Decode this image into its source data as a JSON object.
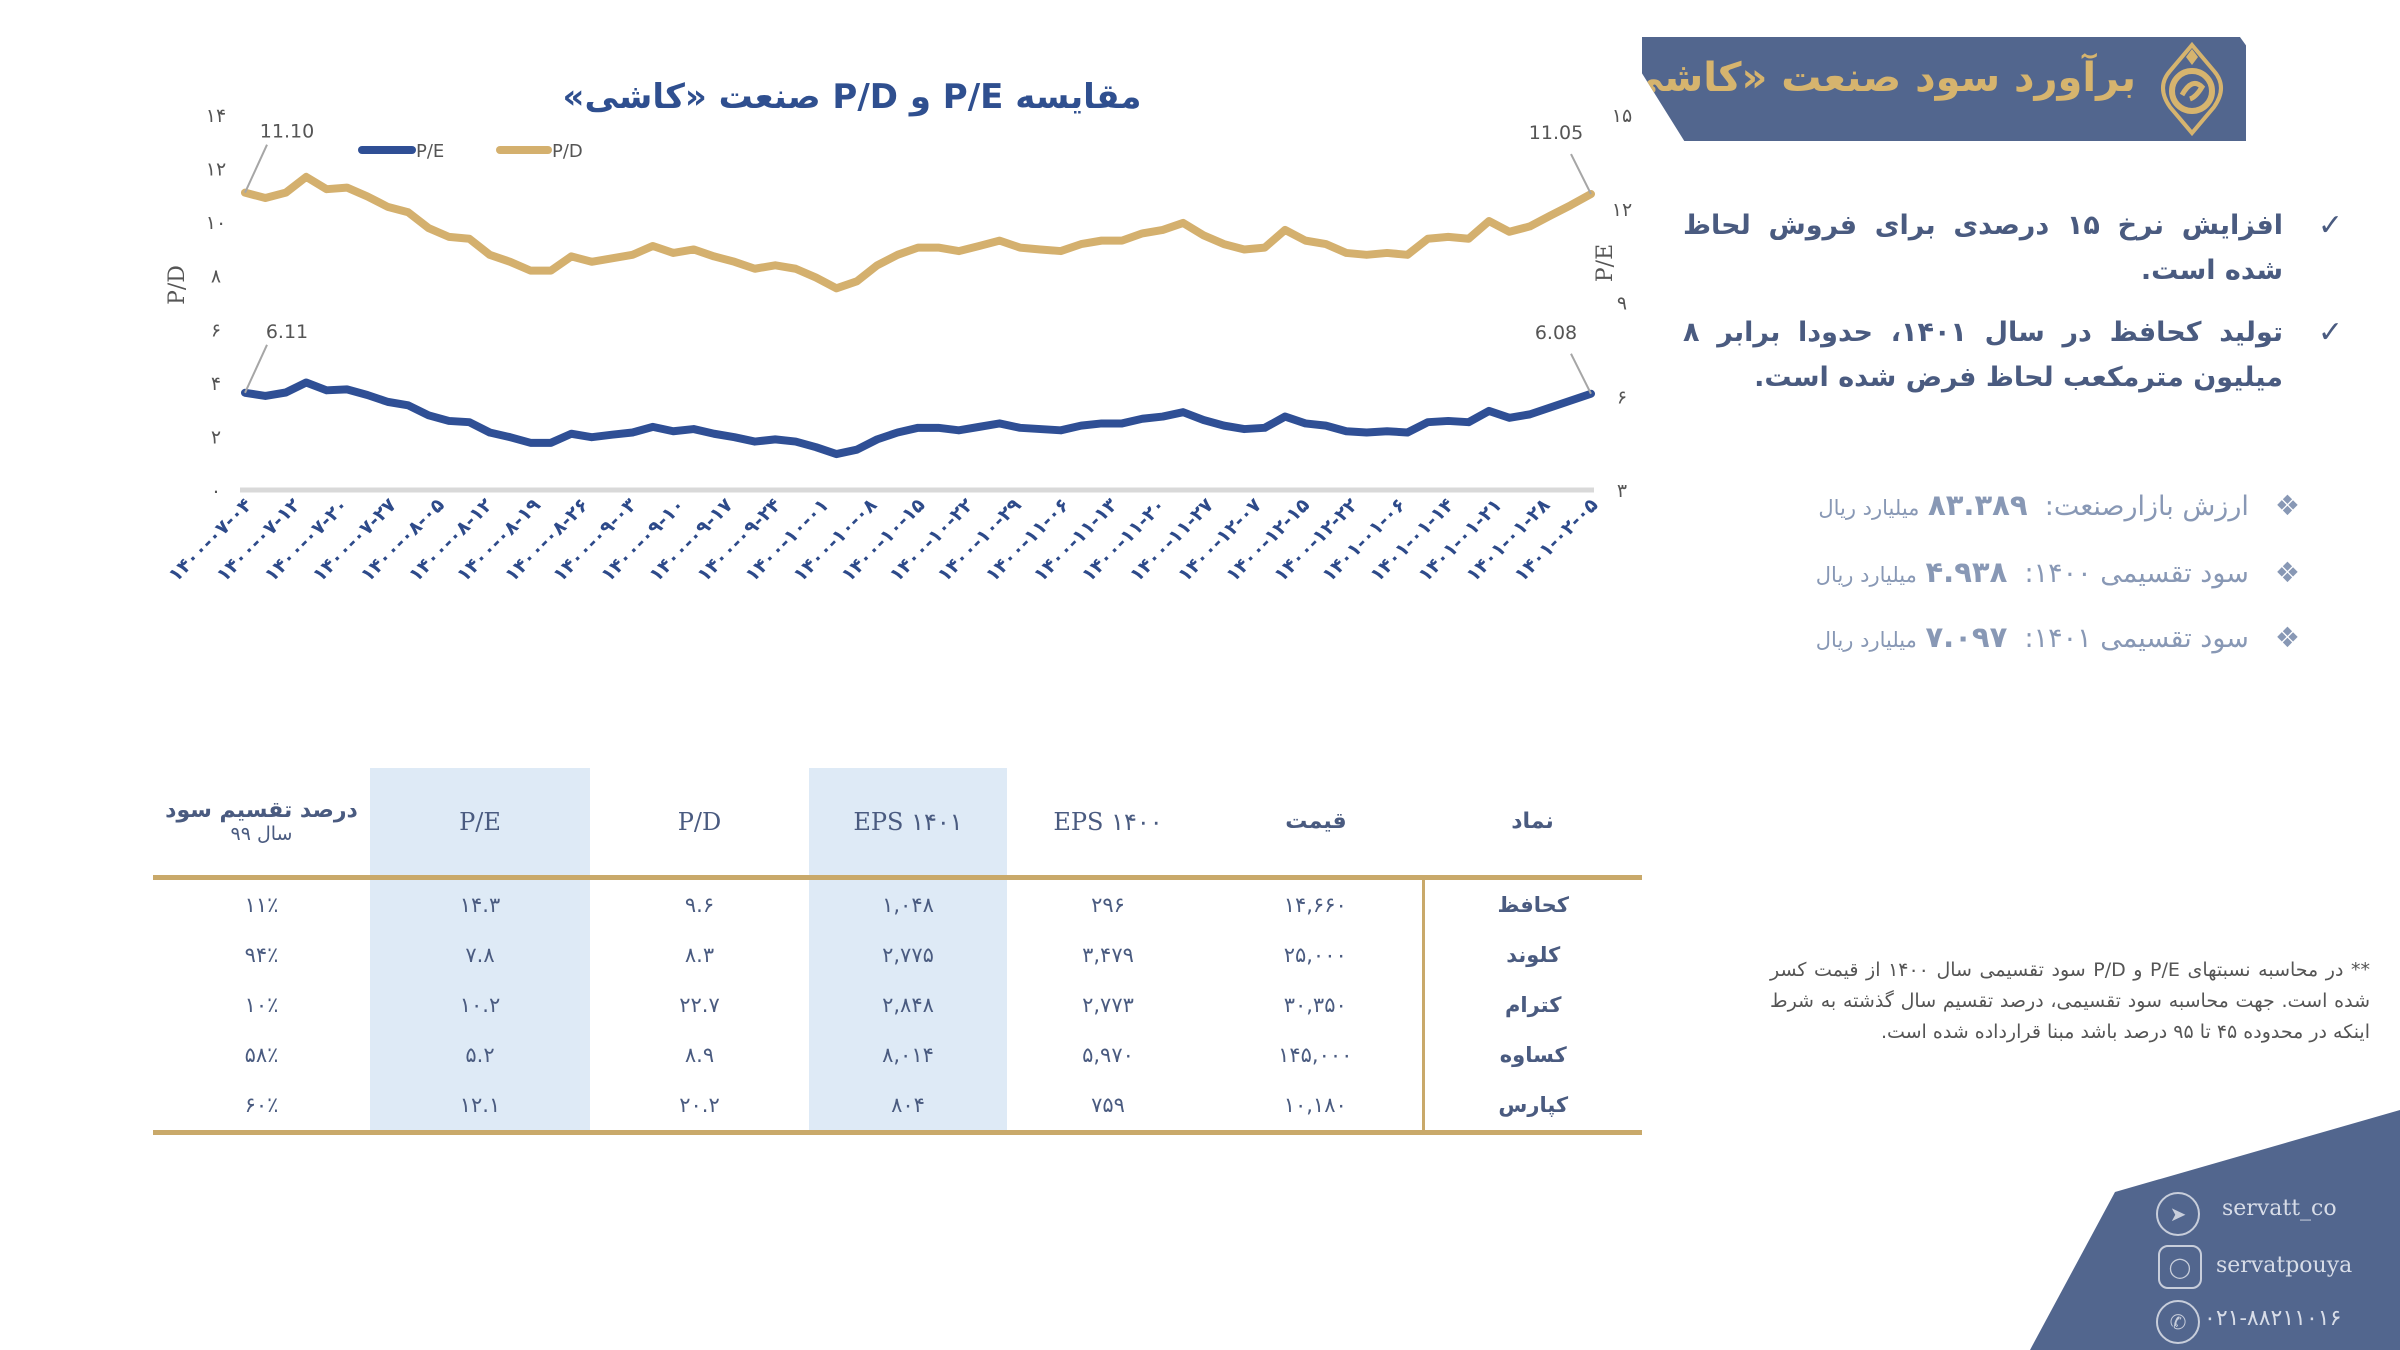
{
  "header": {
    "title": "برآورد سود صنعت «کاشی»",
    "logo_icon": "servat-logo"
  },
  "bullets": [
    "افزایش نرخ ۱۵ درصدی برای فروش لحاظ شده است.",
    "تولید کحافظ در سال ۱۴۰۱، حدودا برابر ۸ میلیون مترمکعب لحاظ فرض شده است."
  ],
  "facts": [
    {
      "label": "ارزش بازارصنعت:",
      "value": "۸۳.۳۸۹",
      "unit": "میلیارد ریال"
    },
    {
      "label": "سود تقسیمی ۱۴۰۰:",
      "value": "۴.۹۳۸",
      "unit": "میلیارد ریال"
    },
    {
      "label": "سود تقسیمی ۱۴۰۱:",
      "value": "۷.۰۹۷",
      "unit": "میلیارد ریال"
    }
  ],
  "note": "** در محاسبه نسبتهای P/E و P/D  سود تقسیمی سال ۱۴۰۰ از قیمت کسر شده است. جهت محاسبه سود تقسیمی، درصد تقسیم سال گذشته به شرط اینکه در محدوده ۴۵ تا ۹۵ درصد باشد مبنا قرارداده شده است.",
  "contacts": {
    "telegram": "servatt_co",
    "instagram": "servatpouya",
    "phone": "۰۲۱-۸۸۲۱۱۰۱۶"
  },
  "table": {
    "headers": [
      "نماد",
      "قیمت",
      "EPS ۱۴۰۰",
      "EPS ۱۴۰۱",
      "P/D",
      "P/E",
      "درصد تقسیم سود",
      "سال ۹۹"
    ],
    "rows": [
      [
        "کحافظ",
        "۱۴,۶۶۰",
        "۲۹۶",
        "۱,۰۴۸",
        "۹.۶",
        "۱۴.۳",
        "۱۱٪"
      ],
      [
        "کلوند",
        "۲۵,۰۰۰",
        "۳,۴۷۹",
        "۲,۷۷۵",
        "۸.۳",
        "۷.۸",
        "۹۴٪"
      ],
      [
        "کترام",
        "۳۰,۳۵۰",
        "۲,۷۷۳",
        "۲,۸۴۸",
        "۲۲.۷",
        "۱۰.۲",
        "۱۰٪"
      ],
      [
        "کساوه",
        "۱۴۵,۰۰۰",
        "۵,۹۷۰",
        "۸,۰۱۴",
        "۸.۹",
        "۵.۲",
        "۵۸٪"
      ],
      [
        "کپارس",
        "۱۰,۱۸۰",
        "۷۵۹",
        "۸۰۴",
        "۲۰.۲",
        "۱۲.۱",
        "۶۰٪"
      ]
    ]
  },
  "colors": {
    "navy": "#52668e",
    "gold": "#d4b06e",
    "pe_line": "#2f4f95",
    "pd_line": "#d4b06e",
    "shade": "#deeaf6"
  },
  "chart_data": {
    "type": "line",
    "title": "مقایسه P/E و P/D صنعت «کاشی»",
    "ylabel_left": "P/D",
    "ylabel_right": "P/E",
    "ylim_left": [
      0,
      14
    ],
    "yticks_left": [
      "۰",
      "۲",
      "۴",
      "۶",
      "۸",
      "۱۰",
      "۱۲",
      "۱۴"
    ],
    "ylim_right": [
      3,
      15
    ],
    "yticks_right": [
      "۳",
      "۶",
      "۹",
      "۱۲",
      "۱۵"
    ],
    "legend": [
      "P/E",
      "P/D"
    ],
    "legend_position": "top-left",
    "xticks": [
      "۱۴۰۰-۰۷-۰۴",
      "۱۴۰۰-۰۷-۱۲",
      "۱۴۰۰-۰۷-۲۰",
      "۱۴۰۰-۰۷-۲۷",
      "۱۴۰۰-۰۸-۰۵",
      "۱۴۰۰-۰۸-۱۲",
      "۱۴۰۰-۰۸-۱۹",
      "۱۴۰۰-۰۸-۲۶",
      "۱۴۰۰-۰۹-۰۳",
      "۱۴۰۰-۰۹-۱۰",
      "۱۴۰۰-۰۹-۱۷",
      "۱۴۰۰-۰۹-۲۴",
      "۱۴۰۰-۱۰-۰۱",
      "۱۴۰۰-۱۰-۰۸",
      "۱۴۰۰-۱۰-۱۵",
      "۱۴۰۰-۱۰-۲۲",
      "۱۴۰۰-۱۰-۲۹",
      "۱۴۰۰-۱۱-۰۶",
      "۱۴۰۰-۱۱-۱۳",
      "۱۴۰۰-۱۱-۲۰",
      "۱۴۰۰-۱۱-۲۷",
      "۱۴۰۰-۱۲-۰۷",
      "۱۴۰۰-۱۲-۱۵",
      "۱۴۰۰-۱۲-۲۲",
      "۱۴۰۱-۰۱-۰۶",
      "۱۴۰۱-۰۱-۱۴",
      "۱۴۰۱-۰۱-۲۱",
      "۱۴۰۱-۰۱-۲۸",
      "۱۴۰۱-۰۲-۰۵"
    ],
    "series": [
      {
        "name": "P/D",
        "axis": "left",
        "start_label": "11.10",
        "end_label": "11.05",
        "values": [
          11.1,
          10.9,
          11.1,
          11.69,
          11.23,
          11.29,
          10.96,
          10.57,
          10.37,
          9.78,
          9.45,
          9.38,
          8.78,
          8.52,
          8.19,
          8.19,
          8.72,
          8.52,
          8.65,
          8.78,
          9.11,
          8.85,
          8.98,
          8.72,
          8.52,
          8.26,
          8.39,
          8.26,
          7.93,
          7.53,
          7.79,
          8.39,
          8.78,
          9.05,
          9.05,
          8.92,
          9.11,
          9.31,
          9.05,
          8.98,
          8.92,
          9.18,
          9.31,
          9.31,
          9.58,
          9.71,
          9.97,
          9.51,
          9.18,
          8.98,
          9.05,
          9.71,
          9.31,
          9.18,
          8.85,
          8.78,
          8.85,
          8.78,
          9.38,
          9.45,
          9.38,
          10.04,
          9.64,
          9.84,
          10.24,
          10.63,
          11.05
        ]
      },
      {
        "name": "P/E",
        "axis": "right",
        "start_label": "6.11",
        "end_label": "6.08",
        "values": [
          6.11,
          6.01,
          6.12,
          6.44,
          6.19,
          6.22,
          6.04,
          5.82,
          5.71,
          5.39,
          5.21,
          5.17,
          4.84,
          4.69,
          4.51,
          4.51,
          4.8,
          4.69,
          4.77,
          4.84,
          5.02,
          4.88,
          4.95,
          4.8,
          4.69,
          4.55,
          4.62,
          4.55,
          4.37,
          4.15,
          4.29,
          4.62,
          4.84,
          4.99,
          4.99,
          4.91,
          5.02,
          5.13,
          4.99,
          4.95,
          4.91,
          5.06,
          5.13,
          5.13,
          5.28,
          5.35,
          5.49,
          5.24,
          5.06,
          4.95,
          4.99,
          5.35,
          5.13,
          5.06,
          4.88,
          4.84,
          4.88,
          4.84,
          5.17,
          5.21,
          5.17,
          5.53,
          5.31,
          5.42,
          5.64,
          5.86,
          6.08
        ]
      }
    ]
  }
}
